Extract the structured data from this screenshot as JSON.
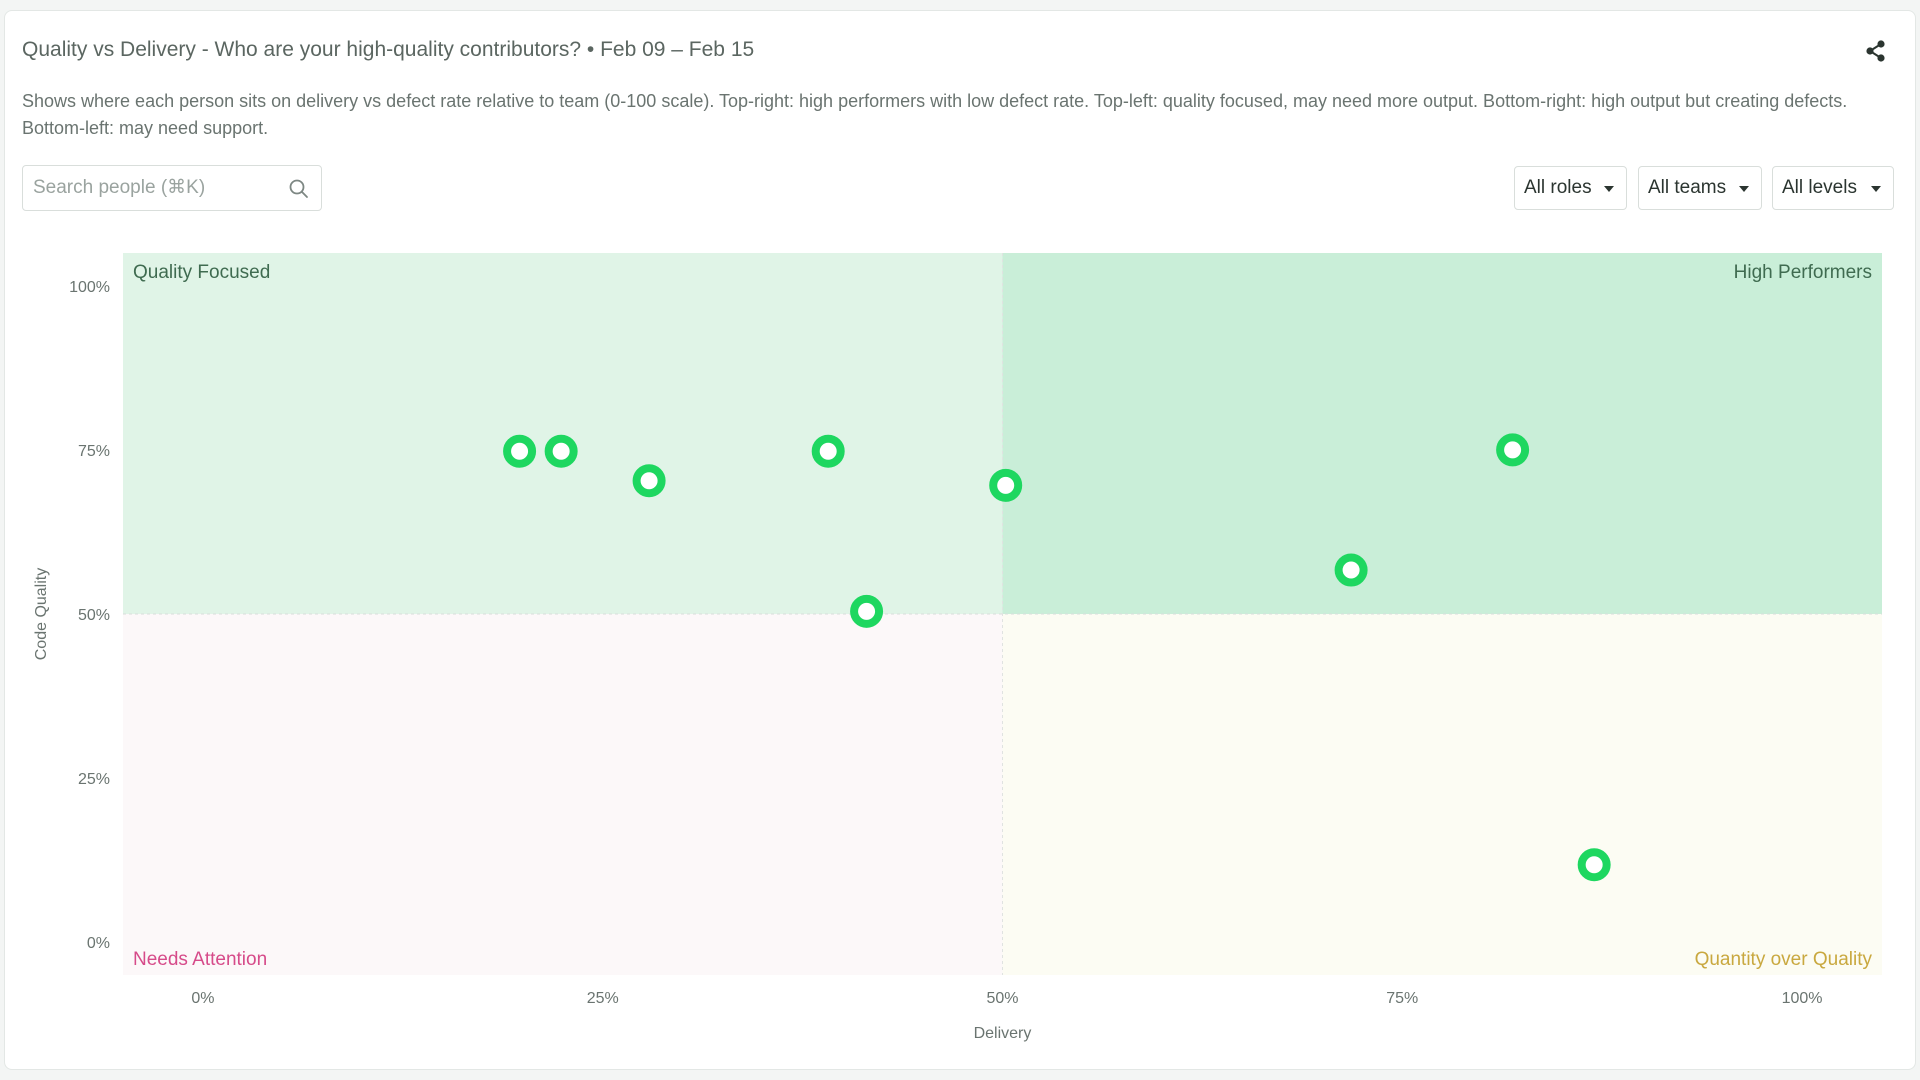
{
  "header": {
    "title": "Quality vs Delivery - Who are your high-quality contributors? • Feb 09 – Feb 15",
    "description": "Shows where each person sits on delivery vs defect rate relative to team (0-100 scale). Top-right: high performers with low defect rate. Top-left: quality focused, may need more output. Bottom-right: high output but creating defects. Bottom-left: may need support."
  },
  "toolbar": {
    "share_icon": "share-icon",
    "search_placeholder": "Search people (⌘K)",
    "search_icon": "search-icon"
  },
  "filters": {
    "roles": "All roles",
    "teams": "All teams",
    "levels": "All levels"
  },
  "colors": {
    "quality_focused_bg": "#e0f4e7",
    "high_performers_bg": "#c9eed8",
    "needs_attention_bg": "#fcf8f9",
    "quantity_over_quality_bg": "#fcfcf3",
    "point": "#1ed760",
    "needs_attention_text": "#d64b8a",
    "quantity_over_quality_text": "#c9a83f",
    "quadrant_green_text": "#3f6b50"
  },
  "chart_data": {
    "type": "scatter",
    "xlabel": "Delivery",
    "ylabel": "Code Quality",
    "xlim": [
      -5,
      105
    ],
    "ylim": [
      -5,
      105
    ],
    "x_ticks": [
      0,
      25,
      50,
      75,
      100
    ],
    "x_tick_labels": [
      "0%",
      "25%",
      "50%",
      "75%",
      "100%"
    ],
    "y_ticks": [
      0,
      25,
      50,
      75,
      100
    ],
    "y_tick_labels": [
      "0%",
      "25%",
      "50%",
      "75%",
      "100%"
    ],
    "quadrants": {
      "top_left": "Quality Focused",
      "top_right": "High Performers",
      "bottom_left": "Needs Attention",
      "bottom_right": "Quantity over Quality"
    },
    "grid": false,
    "legend": "none",
    "points": [
      {
        "x": 19.8,
        "y": 74.8
      },
      {
        "x": 22.4,
        "y": 74.8
      },
      {
        "x": 27.9,
        "y": 70.3
      },
      {
        "x": 39.1,
        "y": 74.8
      },
      {
        "x": 41.5,
        "y": 50.4
      },
      {
        "x": 50.2,
        "y": 69.6
      },
      {
        "x": 71.8,
        "y": 56.7
      },
      {
        "x": 81.9,
        "y": 75.0
      },
      {
        "x": 87.0,
        "y": 11.8
      }
    ]
  }
}
